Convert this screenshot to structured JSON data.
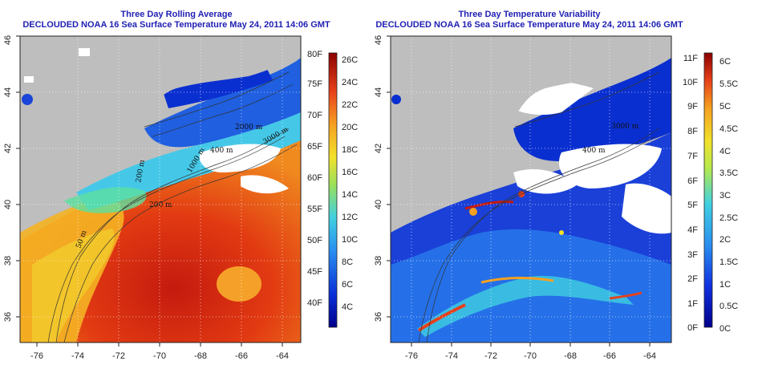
{
  "left_panel": {
    "title_line1": "Three Day Rolling Average",
    "title_line2": "DECLOUDED NOAA 16 Sea Surface Temperature May 24, 2011 14:06 GMT",
    "x_ticks": [
      "-76",
      "-74",
      "-72",
      "-70",
      "-68",
      "-66",
      "-64"
    ],
    "y_ticks": [
      "36",
      "38",
      "40",
      "42",
      "44",
      "46"
    ],
    "colorbar_f": [
      "80F",
      "75F",
      "70F",
      "65F",
      "60F",
      "55F",
      "50F",
      "45F",
      "40F"
    ],
    "colorbar_c": [
      "26C",
      "24C",
      "22C",
      "20C",
      "18C",
      "16C",
      "14C",
      "12C",
      "10C",
      "8C",
      "6C",
      "4C"
    ],
    "contour_labels": [
      "2000 m",
      "1000 m",
      "400 m",
      "200 m",
      "200 m",
      "50 m",
      "3000 m"
    ]
  },
  "right_panel": {
    "title_line1": "Three Day Temperature Variability",
    "title_line2": "DECLOUDED NOAA 16 Sea Surface Temperature May 24, 2011 14:06 GMT",
    "x_ticks": [
      "-76",
      "-74",
      "-72",
      "-70",
      "-68",
      "-66",
      "-64"
    ],
    "y_ticks": [
      "36",
      "38",
      "40",
      "42",
      "44",
      "46"
    ],
    "colorbar_f": [
      "11F",
      "10F",
      "9F",
      "8F",
      "7F",
      "6F",
      "5F",
      "4F",
      "3F",
      "2F",
      "1F",
      "0F"
    ],
    "colorbar_c": [
      "6C",
      "5.5C",
      "5C",
      "4.5C",
      "4C",
      "3.5C",
      "3C",
      "2.5C",
      "2C",
      "1.5C",
      "1C",
      "0.5C",
      "0C"
    ],
    "contour_labels": [
      "3000 m",
      "400 m"
    ]
  },
  "colors": {
    "title": "#1f1fb4",
    "land": "#bebebe",
    "no_data": "#ffffff"
  }
}
